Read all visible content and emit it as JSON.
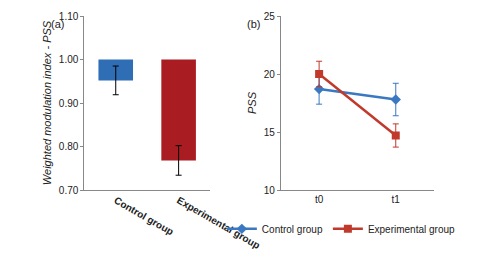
{
  "chart_data": [
    {
      "type": "bar",
      "annotations": [
        "(a)"
      ],
      "y_label": "Weighted modulation index - PSS",
      "categories": [
        "Control group",
        "Experimental group"
      ],
      "values": [
        0.952,
        0.768
      ],
      "errors": [
        0.033,
        0.034
      ],
      "bar_base": 1.0,
      "colors": [
        "#2f6db5",
        "#a81c22"
      ],
      "ylim": [
        0.7,
        1.1
      ],
      "yticks": [
        {
          "value": 0.7,
          "label": "0.70"
        },
        {
          "value": 0.8,
          "label": "0.80"
        },
        {
          "value": 0.9,
          "label": "0.90"
        },
        {
          "value": 1.0,
          "label": "1.00"
        },
        {
          "value": 1.1,
          "label": "1.10"
        }
      ],
      "grid": false
    },
    {
      "type": "line",
      "annotations": [
        "(b)"
      ],
      "y_label": "PSS",
      "categories": [
        "t0",
        "t1"
      ],
      "series": [
        {
          "name": "Control group",
          "color": "#3a78c2",
          "marker": "diamond",
          "values": [
            18.7,
            17.8
          ],
          "errors": [
            1.3,
            1.4
          ]
        },
        {
          "name": "Experimental group",
          "color": "#c0392b",
          "marker": "square",
          "values": [
            20.0,
            14.7
          ],
          "errors": [
            1.1,
            1.0
          ]
        }
      ],
      "ylim": [
        10,
        25
      ],
      "yticks": [
        10,
        15,
        20,
        25
      ],
      "grid": false,
      "legend": "bottom"
    }
  ]
}
